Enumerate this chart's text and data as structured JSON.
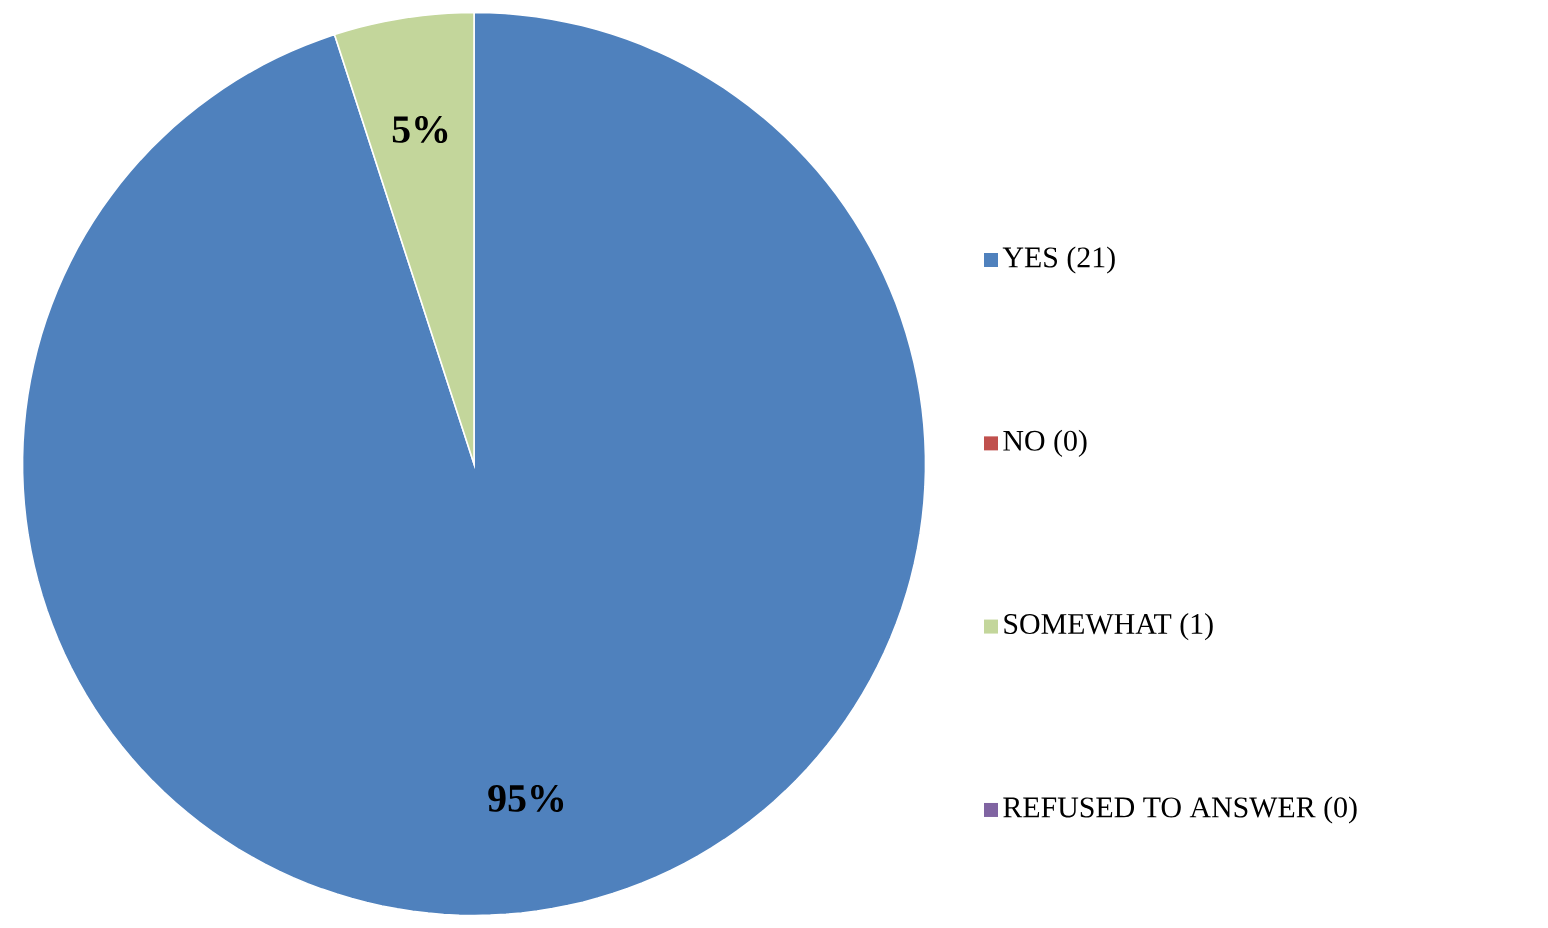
{
  "chart_data": {
    "type": "pie",
    "categories": [
      "YES (21)",
      "NO (0)",
      "SOMEWHAT (1)",
      "REFUSED TO ANSWER (0)"
    ],
    "values": [
      95,
      0,
      5,
      0
    ],
    "colors": [
      "#4f81bd",
      "#c0504d",
      "#c3d69b",
      "#8064a2"
    ],
    "value_labels": [
      "95%",
      null,
      "5%",
      null
    ],
    "legend": "right"
  }
}
